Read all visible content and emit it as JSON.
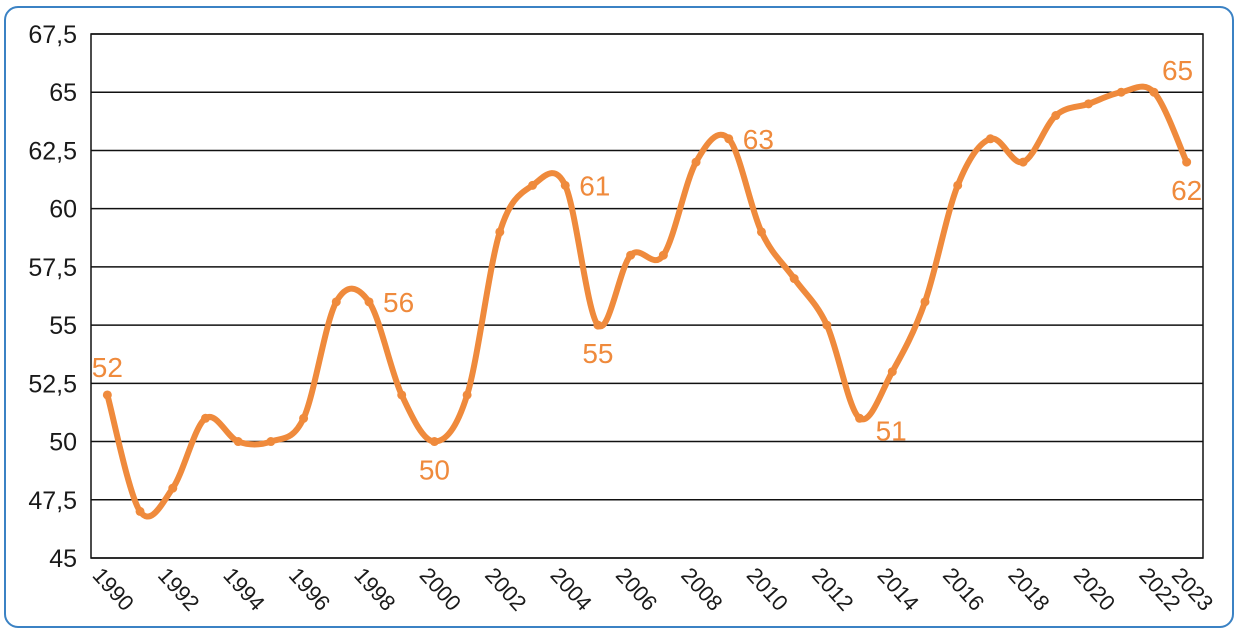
{
  "chart_data": {
    "type": "line",
    "title": "",
    "xlabel": "",
    "ylabel": "",
    "x": [
      1990,
      1991,
      1992,
      1993,
      1994,
      1995,
      1996,
      1997,
      1998,
      1999,
      2000,
      2001,
      2002,
      2003,
      2004,
      2005,
      2006,
      2007,
      2008,
      2009,
      2010,
      2011,
      2012,
      2013,
      2014,
      2015,
      2016,
      2017,
      2018,
      2019,
      2020,
      2021,
      2022,
      2023
    ],
    "series": [
      {
        "name": "",
        "color": "#ef8a3c",
        "values": [
          52,
          47,
          48,
          51,
          50,
          50,
          51,
          56,
          56,
          52,
          50,
          52,
          59,
          61,
          61,
          55,
          58,
          58,
          62,
          63,
          59,
          57,
          55,
          51,
          53,
          56,
          61,
          63,
          62,
          64,
          64.5,
          65,
          65,
          62
        ]
      }
    ],
    "ylim": [
      45,
      67.5
    ],
    "y_ticks": [
      "45",
      "47,5",
      "50",
      "52,5",
      "55",
      "57,5",
      "60",
      "62,5",
      "65",
      "67,5"
    ],
    "x_ticks": [
      "1990",
      "1992",
      "1994",
      "1996",
      "1998",
      "2000",
      "2002",
      "2004",
      "2006",
      "2008",
      "2010",
      "2012",
      "2014",
      "2016",
      "2018",
      "2020",
      "2022",
      "2023"
    ],
    "x_tick_values": [
      1990,
      1992,
      1994,
      1996,
      1998,
      2000,
      2002,
      2004,
      2006,
      2008,
      2010,
      2012,
      2014,
      2016,
      2018,
      2020,
      2022,
      2023
    ],
    "annotations": [
      {
        "x": 1990,
        "y": 52,
        "text": "52",
        "pos": "above"
      },
      {
        "x": 1998,
        "y": 56,
        "text": "56",
        "pos": "right"
      },
      {
        "x": 2000,
        "y": 50,
        "text": "50",
        "pos": "below"
      },
      {
        "x": 2004,
        "y": 61,
        "text": "61",
        "pos": "right"
      },
      {
        "x": 2005,
        "y": 55,
        "text": "55",
        "pos": "below"
      },
      {
        "x": 2009,
        "y": 63,
        "text": "63",
        "pos": "right"
      },
      {
        "x": 2013,
        "y": 51,
        "text": "51",
        "pos": "belowright"
      },
      {
        "x": 2022,
        "y": 65,
        "text": "65",
        "pos": "aboveright"
      },
      {
        "x": 2023,
        "y": 62,
        "text": "62",
        "pos": "below"
      }
    ],
    "grid": true,
    "legend": "none"
  }
}
